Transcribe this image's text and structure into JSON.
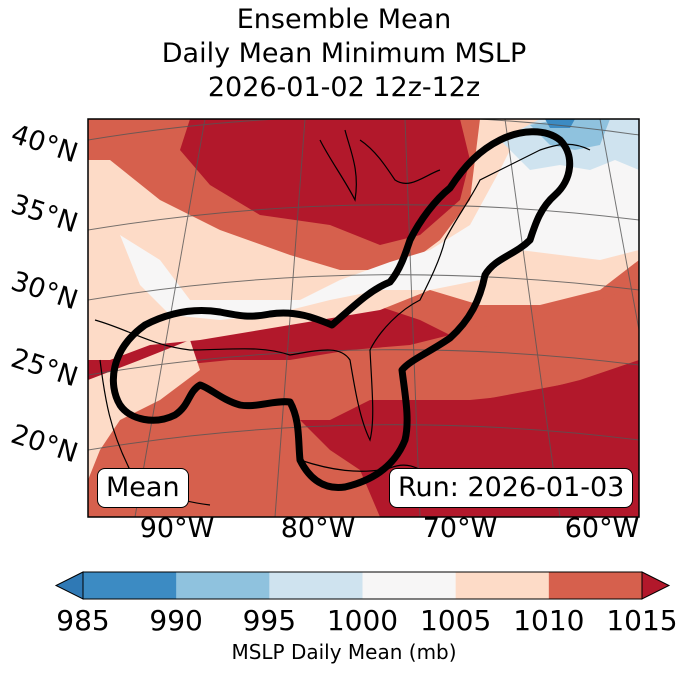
{
  "title": {
    "line1": "Ensemble Mean",
    "line2": "Daily Mean Minimum MSLP",
    "line3": "2026-01-02 12z-12z"
  },
  "map": {
    "lat_labels": [
      "40°N",
      "35°N",
      "30°N",
      "25°N",
      "20°N"
    ],
    "lon_labels": [
      "90°W",
      "80°W",
      "70°W",
      "60°W"
    ],
    "mean_label": "Mean",
    "run_label": "Run: 2026-01-03"
  },
  "colorbar": {
    "ticks": [
      "985",
      "990",
      "995",
      "1000",
      "1005",
      "1010",
      "1015"
    ],
    "label": "MSLP Daily Mean (mb)",
    "colors": [
      "#2f79b5",
      "#3c8bc3",
      "#8fc2de",
      "#cfe3ef",
      "#f7f6f6",
      "#fddbc7",
      "#d6604d",
      "#b2182b"
    ]
  }
}
